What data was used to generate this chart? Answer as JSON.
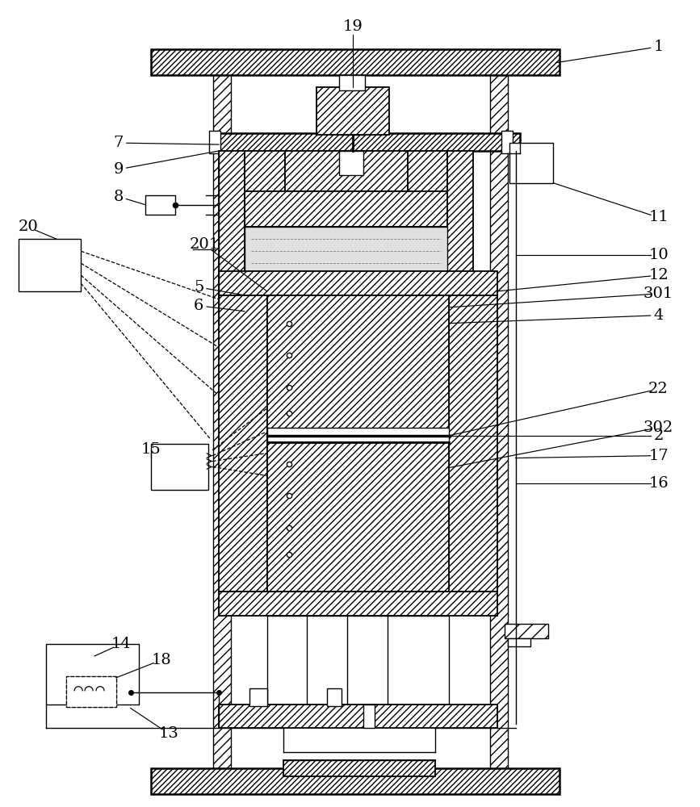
{
  "bg_color": "#ffffff",
  "figsize": [
    8.67,
    10.0
  ],
  "dpi": 100
}
